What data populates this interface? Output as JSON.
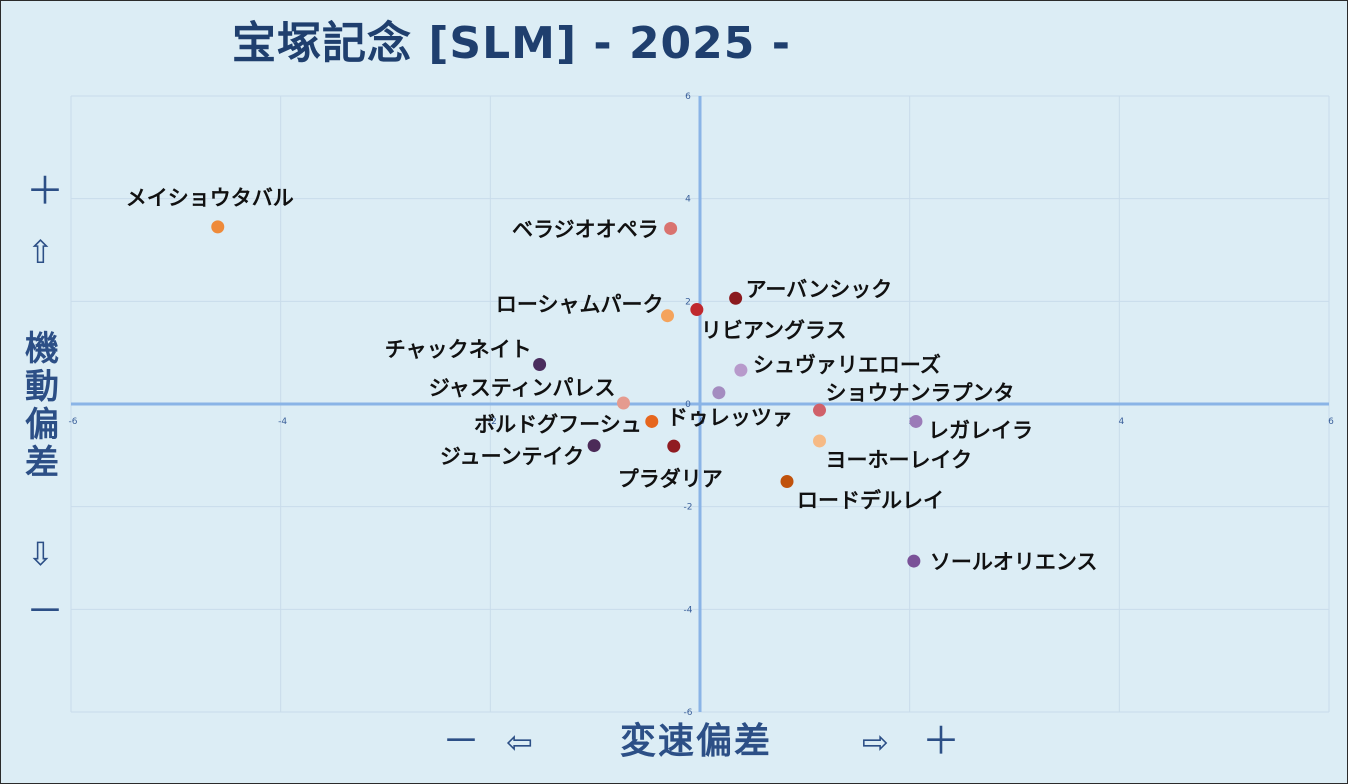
{
  "title": "宝塚記念 [SLM]  - 2025 -",
  "axes": {
    "y_label": "機動偏差",
    "x_label": "変速偏差",
    "y_plus": "＋",
    "y_up": "⇧",
    "y_down": "⇩",
    "y_minus": "－",
    "x_minus": "－",
    "x_left": "⇦",
    "x_right": "⇨",
    "x_plus": "＋"
  },
  "chart_data": {
    "type": "scatter",
    "title": "宝塚記念 [SLM]  - 2025 -",
    "xlabel": "変速偏差",
    "ylabel": "機動偏差",
    "xlim": [
      -6,
      6
    ],
    "ylim": [
      -6,
      6
    ],
    "x_ticks": [
      -6,
      -4,
      -2,
      0,
      2,
      4,
      6
    ],
    "y_ticks": [
      -6,
      -4,
      -2,
      0,
      2,
      4,
      6
    ],
    "grid": true,
    "legend": "none",
    "points": [
      {
        "name": "メイショウタバル",
        "x": -4.6,
        "y": 3.45,
        "color": "#ee8a3a"
      },
      {
        "name": "ベラジオオペラ",
        "x": -0.28,
        "y": 3.42,
        "color": "#d9736f"
      },
      {
        "name": "ローシャムパーク",
        "x": -0.31,
        "y": 1.72,
        "color": "#f4a35c"
      },
      {
        "name": "リビアングラス",
        "x": -0.03,
        "y": 1.84,
        "color": "#c0282d"
      },
      {
        "name": "アーバンシック",
        "x": 0.34,
        "y": 2.06,
        "color": "#8b1a1e"
      },
      {
        "name": "チャックネイト",
        "x": -1.53,
        "y": 0.77,
        "color": "#4a2d5e"
      },
      {
        "name": "シュヴァリエローズ",
        "x": 0.39,
        "y": 0.66,
        "color": "#b79acb"
      },
      {
        "name": "ジャスティンパレス",
        "x": -0.73,
        "y": 0.02,
        "color": "#e59b8f"
      },
      {
        "name": "ショウナンラプンタ",
        "x": 1.14,
        "y": -0.12,
        "color": "#d0616a"
      },
      {
        "name": "ボルドグフーシュ",
        "x": -0.46,
        "y": -0.34,
        "color": "#e6661e"
      },
      {
        "name": "ドゥレッツァ",
        "x": 0.18,
        "y": 0.22,
        "color": "#a48cc0"
      },
      {
        "name": "レガレイラ",
        "x": 2.06,
        "y": -0.34,
        "color": "#9b7bb8"
      },
      {
        "name": "ジューンテイク",
        "x": -1.01,
        "y": -0.81,
        "color": "#4c2b58"
      },
      {
        "name": "プラダリア",
        "x": -0.25,
        "y": -0.82,
        "color": "#901c22"
      },
      {
        "name": "ヨーホーレイク",
        "x": 1.14,
        "y": -0.72,
        "color": "#f6ba85"
      },
      {
        "name": "ロードデルレイ",
        "x": 0.83,
        "y": -1.51,
        "color": "#c0520c"
      },
      {
        "name": "ソールオリエンス",
        "x": 2.04,
        "y": -3.06,
        "color": "#7a5298"
      }
    ]
  }
}
